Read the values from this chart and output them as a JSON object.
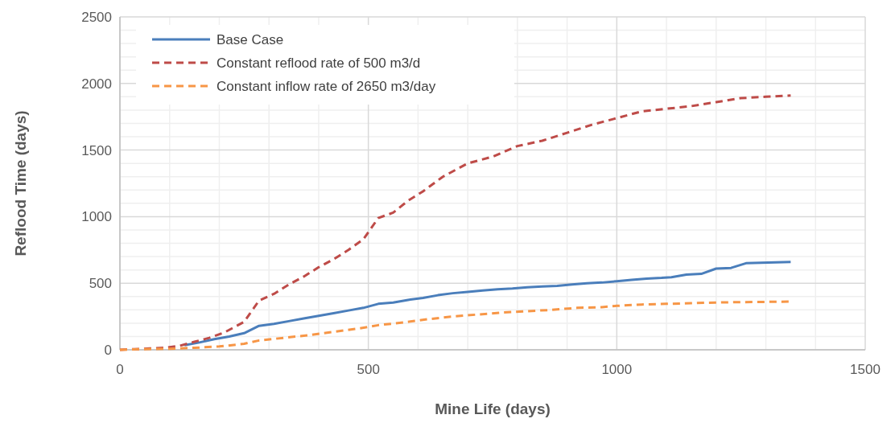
{
  "chart_data": {
    "type": "line",
    "xlabel": "Mine Life (days)",
    "ylabel": "Reflood Time (days)",
    "xlim": [
      0,
      1500
    ],
    "xticks": [
      0,
      500,
      1000,
      1500
    ],
    "ylim": [
      0,
      2500
    ],
    "yticks": [
      0,
      500,
      1000,
      1500,
      2000,
      2500
    ],
    "grid": true,
    "legend": "top left",
    "marker": "none",
    "series": [
      {
        "name": "Base Case",
        "color": "#4a7ebb",
        "line_style": "solid",
        "x": [
          130,
          160,
          190,
          220,
          250,
          280,
          310,
          340,
          370,
          400,
          430,
          460,
          490,
          520,
          550,
          580,
          610,
          640,
          670,
          700,
          730,
          760,
          790,
          820,
          850,
          880,
          910,
          940,
          970,
          1000,
          1030,
          1060,
          1090,
          1110,
          1140,
          1170,
          1200,
          1230,
          1260,
          1350
        ],
        "values": [
          35,
          55,
          80,
          100,
          125,
          180,
          195,
          215,
          235,
          255,
          275,
          295,
          315,
          345,
          355,
          375,
          390,
          410,
          425,
          435,
          445,
          455,
          460,
          470,
          475,
          480,
          490,
          500,
          505,
          515,
          525,
          535,
          540,
          545,
          565,
          570,
          610,
          615,
          650,
          660
        ]
      },
      {
        "name": "Constant reflood rate of 500 m3/d",
        "color": "#be4b48",
        "line_style": "dashed",
        "x": [
          0,
          30,
          60,
          90,
          120,
          150,
          180,
          210,
          250,
          280,
          310,
          340,
          370,
          400,
          430,
          460,
          490,
          520,
          550,
          580,
          610,
          650,
          700,
          750,
          800,
          850,
          900,
          950,
          1000,
          1050,
          1100,
          1150,
          1200,
          1250,
          1300,
          1350
        ],
        "values": [
          0,
          5,
          10,
          15,
          30,
          60,
          90,
          130,
          210,
          370,
          420,
          490,
          550,
          620,
          680,
          750,
          830,
          990,
          1030,
          1120,
          1190,
          1300,
          1400,
          1450,
          1530,
          1570,
          1630,
          1690,
          1740,
          1790,
          1810,
          1830,
          1860,
          1890,
          1900,
          1910
        ]
      },
      {
        "name": "Constant inflow rate of 2650 m3/day",
        "color": "#f79646",
        "line_style": "dashed",
        "x": [
          0,
          50,
          100,
          150,
          200,
          250,
          280,
          330,
          380,
          430,
          480,
          520,
          570,
          620,
          670,
          720,
          770,
          820,
          870,
          920,
          970,
          1000,
          1050,
          1100,
          1150,
          1200,
          1250,
          1300,
          1350
        ],
        "values": [
          0,
          5,
          8,
          15,
          25,
          45,
          70,
          90,
          110,
          135,
          160,
          185,
          205,
          230,
          250,
          265,
          280,
          290,
          300,
          315,
          320,
          330,
          340,
          345,
          350,
          355,
          358,
          360,
          362
        ]
      }
    ]
  }
}
